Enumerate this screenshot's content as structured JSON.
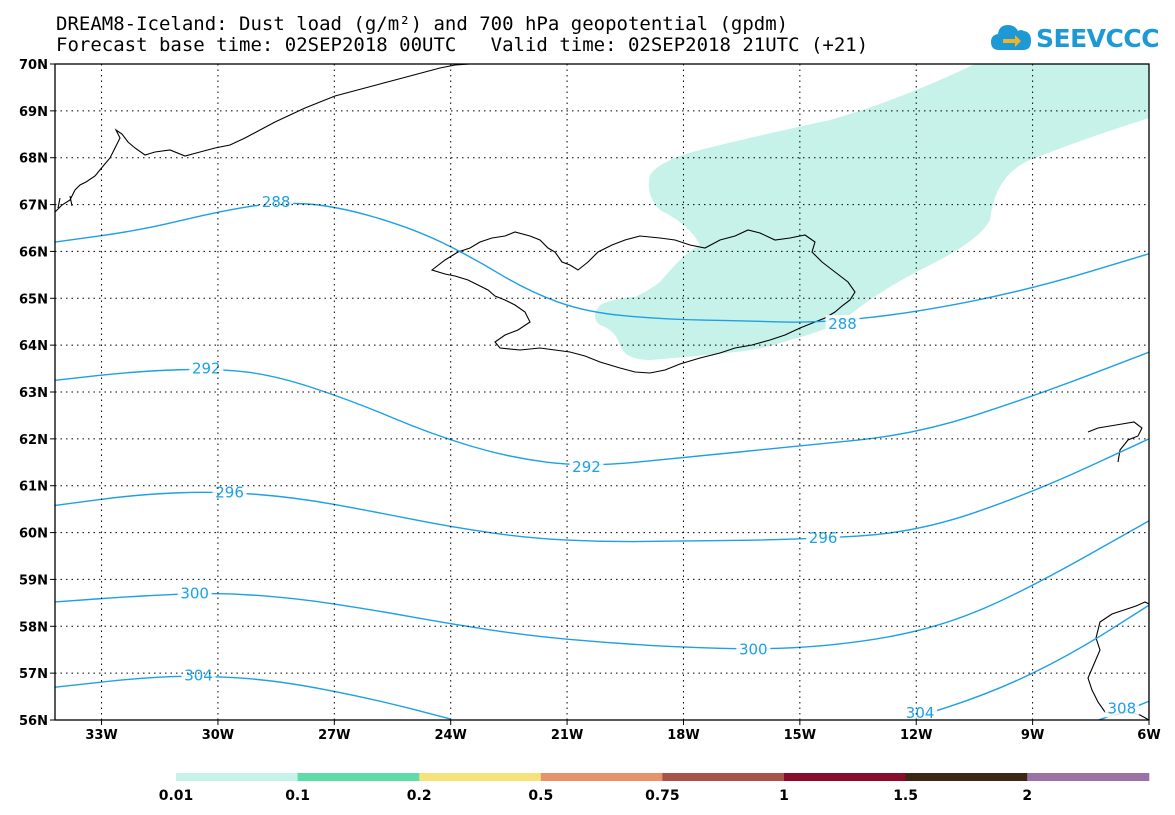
{
  "title": {
    "line1": "DREAM8-Iceland: Dust load (g/m²) and 700 hPa geopotential (gpdm)",
    "line2": "Forecast base time: 02SEP2018 00UTC   Valid time: 02SEP2018 21UTC (+21)"
  },
  "logo": {
    "text": "SEEVCCC",
    "icon": "cloud-arrow-icon"
  },
  "map": {
    "lon_range": [
      -34.2,
      -6
    ],
    "lat_range": [
      56,
      70
    ],
    "lon_ticks": [
      {
        "value": -33,
        "label": "33W"
      },
      {
        "value": -30,
        "label": "30W"
      },
      {
        "value": -27,
        "label": "27W"
      },
      {
        "value": -24,
        "label": "24W"
      },
      {
        "value": -21,
        "label": "21W"
      },
      {
        "value": -18,
        "label": "18W"
      },
      {
        "value": -15,
        "label": "15W"
      },
      {
        "value": -12,
        "label": "12W"
      },
      {
        "value": -9,
        "label": "9W"
      },
      {
        "value": -6,
        "label": "6W"
      }
    ],
    "lat_ticks": [
      {
        "value": 56,
        "label": "56N"
      },
      {
        "value": 57,
        "label": "57N"
      },
      {
        "value": 58,
        "label": "58N"
      },
      {
        "value": 59,
        "label": "59N"
      },
      {
        "value": 60,
        "label": "60N"
      },
      {
        "value": 61,
        "label": "61N"
      },
      {
        "value": 62,
        "label": "62N"
      },
      {
        "value": 63,
        "label": "63N"
      },
      {
        "value": 64,
        "label": "64N"
      },
      {
        "value": 65,
        "label": "65N"
      },
      {
        "value": 66,
        "label": "66N"
      },
      {
        "value": 67,
        "label": "67N"
      },
      {
        "value": 68,
        "label": "68N"
      },
      {
        "value": 69,
        "label": "69N"
      },
      {
        "value": 70,
        "label": "70N"
      }
    ],
    "contours": [
      {
        "value": "288",
        "points": [
          [
            -34.2,
            66.2
          ],
          [
            -32,
            66.45
          ],
          [
            -30,
            66.85
          ],
          [
            -28.5,
            67.05
          ],
          [
            -27,
            66.98
          ],
          [
            -25,
            66.5
          ],
          [
            -23.5,
            65.9
          ],
          [
            -22,
            65.15
          ],
          [
            -20.5,
            64.7
          ],
          [
            -18.5,
            64.55
          ],
          [
            -16.5,
            64.52
          ],
          [
            -14.5,
            64.47
          ],
          [
            -12,
            64.7
          ],
          [
            -9,
            65.2
          ],
          [
            -6,
            65.95
          ]
        ],
        "labels": [
          {
            "lon": -28.5,
            "lat": 67.05,
            "text": "288"
          },
          {
            "lon": -13.9,
            "lat": 64.45,
            "text": "288"
          }
        ]
      },
      {
        "value": "292",
        "points": [
          [
            -34.2,
            63.25
          ],
          [
            -32,
            63.45
          ],
          [
            -30,
            63.5
          ],
          [
            -28.5,
            63.35
          ],
          [
            -26.5,
            62.8
          ],
          [
            -24.5,
            62.1
          ],
          [
            -22.5,
            61.6
          ],
          [
            -20.5,
            61.4
          ],
          [
            -18,
            61.6
          ],
          [
            -15,
            61.85
          ],
          [
            -12,
            62.1
          ],
          [
            -9,
            62.9
          ],
          [
            -6,
            63.85
          ]
        ],
        "labels": [
          {
            "lon": -30.3,
            "lat": 63.5,
            "text": "292"
          },
          {
            "lon": -20.5,
            "lat": 61.4,
            "text": "292"
          }
        ]
      },
      {
        "value": "296",
        "points": [
          [
            -34.2,
            60.58
          ],
          [
            -32,
            60.82
          ],
          [
            -30,
            60.88
          ],
          [
            -28,
            60.75
          ],
          [
            -26,
            60.45
          ],
          [
            -24,
            60.12
          ],
          [
            -22,
            59.88
          ],
          [
            -20,
            59.8
          ],
          [
            -18,
            59.82
          ],
          [
            -15,
            59.85
          ],
          [
            -12,
            60.0
          ],
          [
            -9,
            60.85
          ],
          [
            -6,
            62.0
          ]
        ],
        "labels": [
          {
            "lon": -29.7,
            "lat": 60.85,
            "text": "296"
          },
          {
            "lon": -14.4,
            "lat": 59.88,
            "text": "296"
          }
        ]
      },
      {
        "value": "300",
        "points": [
          [
            -34.2,
            58.52
          ],
          [
            -32,
            58.65
          ],
          [
            -30,
            58.72
          ],
          [
            -28,
            58.6
          ],
          [
            -26,
            58.35
          ],
          [
            -24,
            58.05
          ],
          [
            -22,
            57.8
          ],
          [
            -20,
            57.65
          ],
          [
            -18,
            57.55
          ],
          [
            -15.5,
            57.5
          ],
          [
            -13,
            57.7
          ],
          [
            -11,
            58.1
          ],
          [
            -9,
            58.85
          ],
          [
            -6,
            60.25
          ]
        ],
        "labels": [
          {
            "lon": -30.6,
            "lat": 58.7,
            "text": "300"
          },
          {
            "lon": -16.2,
            "lat": 57.5,
            "text": "300"
          }
        ]
      },
      {
        "value": "304",
        "points": [
          [
            -34.2,
            56.7
          ],
          [
            -32,
            56.9
          ],
          [
            -30.5,
            56.95
          ],
          [
            -28.5,
            56.85
          ],
          [
            -26,
            56.45
          ],
          [
            -24,
            56.02
          ]
        ],
        "labels": [
          {
            "lon": -30.5,
            "lat": 56.95,
            "text": "304"
          }
        ]
      },
      {
        "value": "304",
        "points": [
          [
            -12.2,
            56.0
          ],
          [
            -10,
            56.6
          ],
          [
            -8,
            57.4
          ],
          [
            -6,
            58.45
          ]
        ],
        "labels": [
          {
            "lon": -11.9,
            "lat": 56.15,
            "text": "304"
          }
        ]
      },
      {
        "value": "308",
        "points": [
          [
            -7.3,
            56.0
          ],
          [
            -6.6,
            56.2
          ],
          [
            -6,
            56.4
          ]
        ],
        "labels": [
          {
            "lon": -6.7,
            "lat": 56.25,
            "text": "308"
          }
        ]
      }
    ]
  },
  "colorbar": {
    "labels": [
      "0.01",
      "0.1",
      "0.2",
      "0.5",
      "0.75",
      "1",
      "1.5",
      "2"
    ],
    "colors": [
      "#c7f2ea",
      "#5ddca9",
      "#f5e27a",
      "#e8926a",
      "#a8524a",
      "#8a0c2c",
      "#3c2714",
      "#9a72a3"
    ]
  },
  "colors": {
    "dust_light": "#c7f2ea",
    "contour": "#1ea0e6",
    "coast": "#000000"
  }
}
